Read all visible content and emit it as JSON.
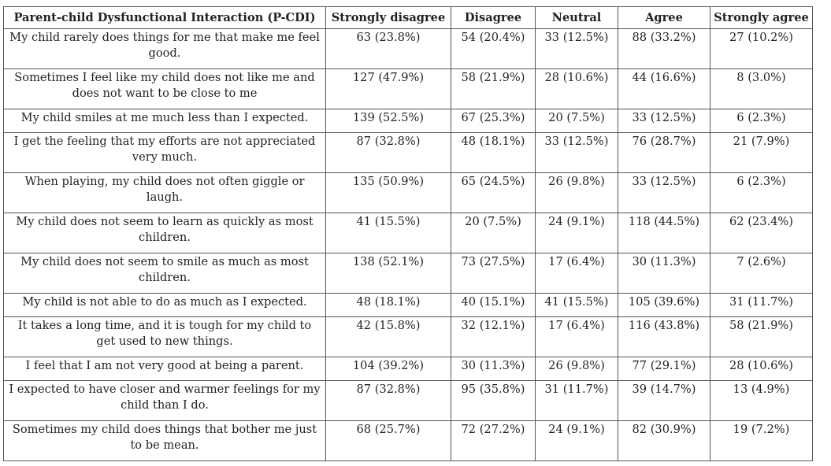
{
  "table": {
    "headers": [
      "Parent-child Dysfunctional Interaction (P-CDI)",
      "Strongly disagree",
      "Disagree",
      "Neutral",
      "Agree",
      "Strongly agree"
    ],
    "rows": [
      {
        "statement": "My child rarely does things for me that make me feel good.",
        "cells": [
          "63 (23.8%)",
          "54 (20.4%)",
          "33 (12.5%)",
          "88 (33.2%)",
          "27 (10.2%)"
        ]
      },
      {
        "statement": "Sometimes I feel like my child does not like me and does not want to be close to me",
        "cells": [
          "127 (47.9%)",
          "58 (21.9%)",
          "28 (10.6%)",
          "44 (16.6%)",
          "8 (3.0%)"
        ]
      },
      {
        "statement": "My child smiles at me much less than I expected.",
        "cells": [
          "139 (52.5%)",
          "67 (25.3%)",
          "20 (7.5%)",
          "33 (12.5%)",
          "6 (2.3%)"
        ]
      },
      {
        "statement": "I get the feeling that my efforts are not appreciated very much.",
        "cells": [
          "87 (32.8%)",
          "48 (18.1%)",
          "33 (12.5%)",
          "76 (28.7%)",
          "21 (7.9%)"
        ]
      },
      {
        "statement": "When playing, my child does not often giggle or laugh.",
        "cells": [
          "135 (50.9%)",
          "65 (24.5%)",
          "26 (9.8%)",
          "33 (12.5%)",
          "6 (2.3%)"
        ]
      },
      {
        "statement": "My child does not seem to learn as quickly as most children.",
        "cells": [
          "41 (15.5%)",
          "20 (7.5%)",
          "24 (9.1%)",
          "118 (44.5%)",
          "62 (23.4%)"
        ]
      },
      {
        "statement": "My child does not seem to smile as much as most children.",
        "cells": [
          "138 (52.1%)",
          "73 (27.5%)",
          "17 (6.4%)",
          "30 (11.3%)",
          "7 (2.6%)"
        ]
      },
      {
        "statement": "My child is not able to do as much as I expected.",
        "cells": [
          "48 (18.1%)",
          "40 (15.1%)",
          "41 (15.5%)",
          "105 (39.6%)",
          "31 (11.7%)"
        ]
      },
      {
        "statement": "It takes a long time, and it is tough for my child to get used to new things.",
        "cells": [
          "42 (15.8%)",
          "32 (12.1%)",
          "17 (6.4%)",
          "116 (43.8%)",
          "58 (21.9%)"
        ]
      },
      {
        "statement": "I feel that I am not very good at being a parent.",
        "cells": [
          "104 (39.2%)",
          "30 (11.3%)",
          "26 (9.8%)",
          "77 (29.1%)",
          "28 (10.6%)"
        ]
      },
      {
        "statement": "I expected to have closer and warmer feelings for my child than I do.",
        "cells": [
          "87 (32.8%)",
          "95 (35.8%)",
          "31 (11.7%)",
          "39 (14.7%)",
          "13 (4.9%)"
        ]
      },
      {
        "statement": "Sometimes my child does things that bother me just to be mean.",
        "cells": [
          "68 (25.7%)",
          "72 (27.2%)",
          "24 (9.1%)",
          "82 (30.9%)",
          "19 (7.2%)"
        ]
      }
    ]
  }
}
